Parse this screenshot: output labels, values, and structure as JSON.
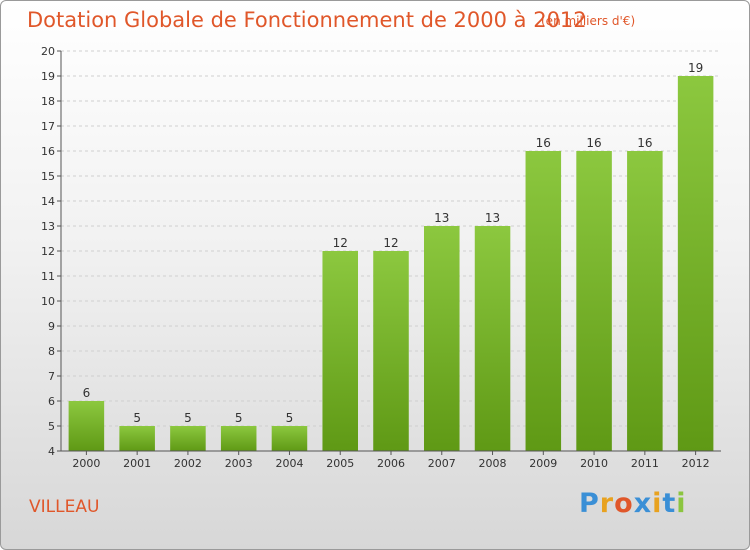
{
  "header": {
    "title": "Dotation Globale de Fonctionnement de 2000 à 2012",
    "subtitle": "(en milliers d'€)"
  },
  "footer": {
    "place": "VILLEAU",
    "brand_letters": [
      "P",
      "r",
      "o",
      "x",
      "i",
      "t",
      "i"
    ],
    "brand_colors": [
      "#3a8fd6",
      "#e8a21f",
      "#e0572a",
      "#3a8fd6",
      "#e8a21f",
      "#3a8fd6",
      "#8bc53f"
    ]
  },
  "colors": {
    "bar_top": "#8cc83f",
    "bar_bottom": "#5f9915",
    "grid": "#cfcfcf",
    "axis": "#555555",
    "text": "#333333"
  },
  "chart_data": {
    "type": "bar",
    "title": "Dotation Globale de Fonctionnement de 2000 à 2012",
    "subtitle": "(en milliers d'€)",
    "categories": [
      "2000",
      "2001",
      "2002",
      "2003",
      "2004",
      "2005",
      "2006",
      "2007",
      "2008",
      "2009",
      "2010",
      "2011",
      "2012"
    ],
    "values": [
      6,
      5,
      5,
      5,
      5,
      12,
      12,
      13,
      13,
      16,
      16,
      16,
      19
    ],
    "ylim": [
      4,
      20
    ],
    "yticks": [
      4,
      5,
      6,
      7,
      8,
      9,
      10,
      11,
      12,
      13,
      14,
      15,
      16,
      17,
      18,
      19,
      20
    ],
    "grid": true,
    "data_labels": true
  }
}
